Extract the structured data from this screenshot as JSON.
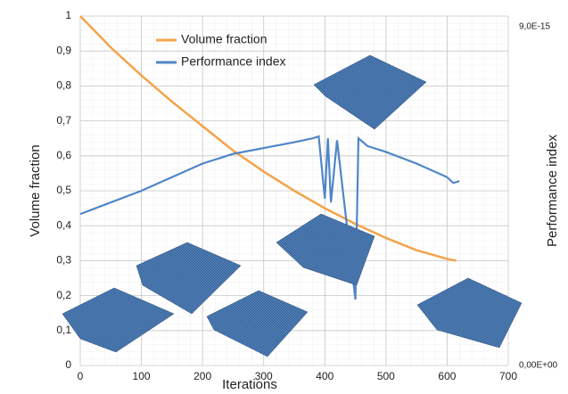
{
  "chart_data": {
    "type": "line",
    "x_label": "Iterations",
    "y_label": "Volume fraction",
    "y2_label": "Performance index",
    "xlim": [
      0,
      700
    ],
    "xticks": [
      0,
      100,
      200,
      300,
      400,
      500,
      600,
      700
    ],
    "ylim": [
      0,
      1
    ],
    "yticks": [
      0,
      {
        "value": 0.1,
        "label": "0,1"
      },
      {
        "value": 0.2,
        "label": "0,2"
      },
      {
        "value": 0.3,
        "label": "0,3"
      },
      {
        "value": 0.4,
        "label": "0,4"
      },
      {
        "value": 0.5,
        "label": "0,5"
      },
      {
        "value": 0.6,
        "label": "0,6"
      },
      {
        "value": 0.7,
        "label": "0,7"
      },
      {
        "value": 0.8,
        "label": "0,8"
      },
      {
        "value": 0.9,
        "label": "0,9"
      },
      1
    ],
    "y2lim": [
      0,
      9e-15
    ],
    "y2ticks": [
      {
        "value": 0,
        "label": "0,00E+00"
      },
      {
        "value": 9e-15,
        "label": "9,0E-15"
      }
    ],
    "grid": true,
    "legend": "upper-left",
    "series": [
      {
        "name": "Volume fraction",
        "color": "#f5a34a",
        "x": [
          0,
          50,
          100,
          150,
          200,
          250,
          300,
          350,
          400,
          450,
          500,
          550,
          600,
          615
        ],
        "values": [
          1,
          0.91,
          0.83,
          0.755,
          0.685,
          0.615,
          0.555,
          0.5,
          0.45,
          0.405,
          0.365,
          0.33,
          0.305,
          0.3
        ]
      },
      {
        "name": "Performance index",
        "color": "#4f86c6",
        "axis": "y2",
        "x": [
          0,
          50,
          100,
          150,
          200,
          250,
          300,
          350,
          380,
          390,
          400,
          405,
          410,
          420,
          450,
          455,
          470,
          500,
          550,
          600,
          610,
          620
        ],
        "values": [
          3.9e-15,
          4.2e-15,
          4.5e-15,
          4.85e-15,
          5.2e-15,
          5.45e-15,
          5.6e-15,
          5.75e-15,
          5.85e-15,
          5.9e-15,
          4.3e-15,
          5.85e-15,
          4.2e-15,
          5.8e-15,
          1.7e-15,
          5.85e-15,
          5.65e-15,
          5.5e-15,
          5.2e-15,
          4.85e-15,
          4.7e-15,
          4.75e-15
        ]
      }
    ]
  }
}
